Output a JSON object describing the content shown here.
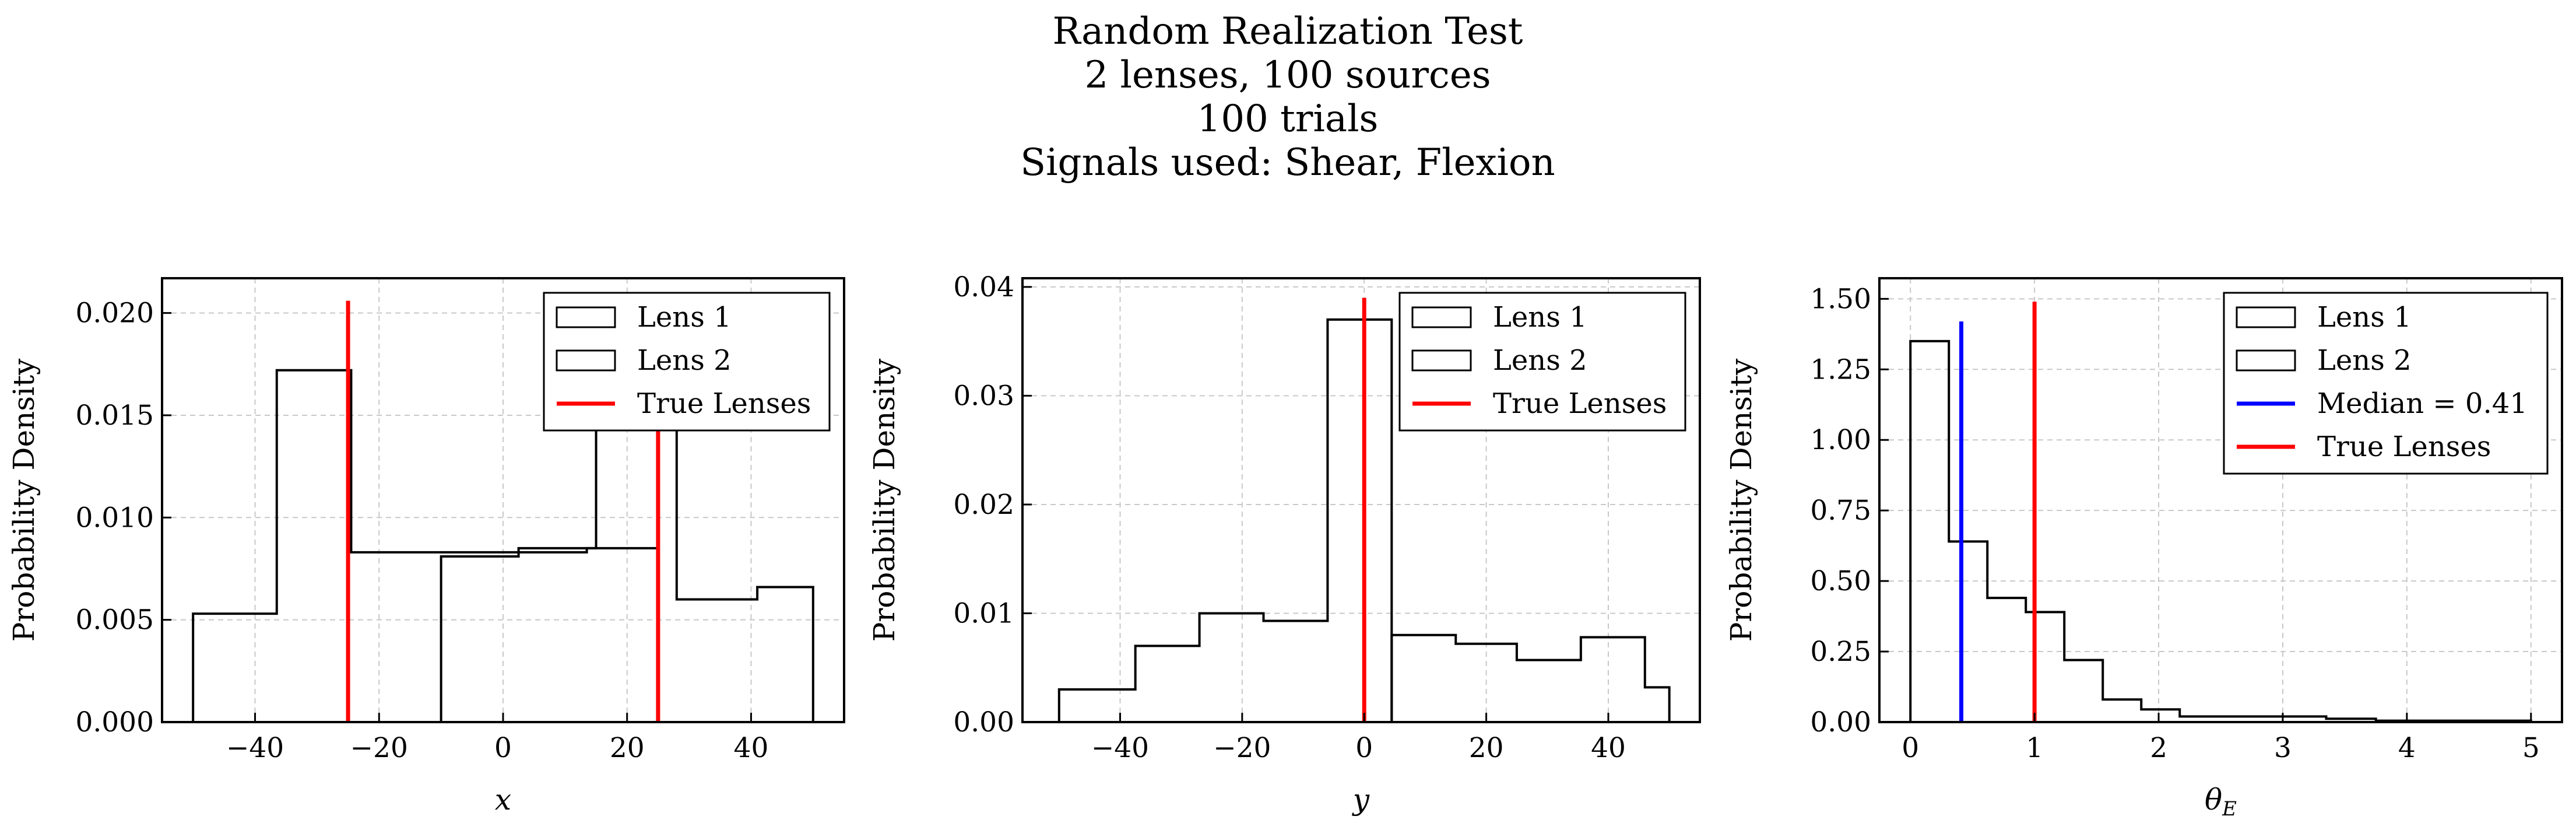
{
  "title_lines": [
    "Random Realization Test",
    "2 lenses, 100 sources",
    "100 trials",
    "Signals used: Shear, Flexion"
  ],
  "colors": {
    "hist": "#000000",
    "true_lenses": "#ff0000",
    "median": "#0000ff",
    "grid": "#c8c8c8"
  },
  "chart_data": [
    {
      "type": "histogram",
      "xlabel": "x",
      "ylabel": "Probability Density",
      "xlim": [
        -55,
        55
      ],
      "ylim": [
        0,
        0.0217
      ],
      "xticks": [
        -40,
        -20,
        0,
        20,
        40
      ],
      "xtick_labels": [
        "−40",
        "−20",
        "0",
        "20",
        "40"
      ],
      "yticks": [
        0,
        0.005,
        0.01,
        0.015,
        0.02
      ],
      "ytick_labels": [
        "0.000",
        "0.005",
        "0.010",
        "0.015",
        "0.020"
      ],
      "grid": true,
      "legend_position": "top-right",
      "series": [
        {
          "name": "Lens 1",
          "kind": "step",
          "edges": [
            -50,
            -36.5,
            -24.5,
            13.5,
            25
          ],
          "values": [
            0.0053,
            0.0172,
            0.0083,
            0.0085
          ]
        },
        {
          "name": "Lens 2",
          "kind": "step",
          "edges": [
            -10,
            2.5,
            15,
            28,
            41,
            50
          ],
          "values": [
            0.0081,
            0.0085,
            0.0151,
            0.006,
            0.0066
          ]
        }
      ],
      "vlines": [
        {
          "name": "True Lenses",
          "color": "#ff0000",
          "x": [
            -25,
            25
          ],
          "ymax": 0.0206
        }
      ],
      "legend": [
        {
          "label": "Lens 1",
          "kind": "patch"
        },
        {
          "label": "Lens 2",
          "kind": "patch"
        },
        {
          "label": "True Lenses",
          "kind": "line",
          "color": "#ff0000"
        }
      ]
    },
    {
      "type": "histogram",
      "xlabel": "y",
      "ylabel": "Probability Density",
      "xlim": [
        -56,
        55
      ],
      "ylim": [
        0,
        0.0408
      ],
      "xticks": [
        -40,
        -20,
        0,
        20,
        40
      ],
      "xtick_labels": [
        "−40",
        "−20",
        "0",
        "20",
        "40"
      ],
      "yticks": [
        0,
        0.01,
        0.02,
        0.03,
        0.04
      ],
      "ytick_labels": [
        "0.00",
        "0.01",
        "0.02",
        "0.03",
        "0.04"
      ],
      "grid": true,
      "legend_position": "top-right",
      "series": [
        {
          "name": "Lens 1",
          "kind": "step",
          "edges": [
            -50,
            -37.5,
            -27,
            -16.5,
            -6,
            4.5
          ],
          "values": [
            0.003,
            0.007,
            0.01,
            0.0093,
            0.037
          ]
        },
        {
          "name": "Lens 2",
          "kind": "step",
          "edges": [
            4.5,
            15,
            25,
            35.5,
            46,
            50
          ],
          "values": [
            0.008,
            0.0072,
            0.0057,
            0.0078,
            0.0032
          ]
        }
      ],
      "vlines": [
        {
          "name": "True Lenses",
          "color": "#ff0000",
          "x": [
            0
          ],
          "ymax": 0.039
        }
      ],
      "legend": [
        {
          "label": "Lens 1",
          "kind": "patch"
        },
        {
          "label": "Lens 2",
          "kind": "patch"
        },
        {
          "label": "True Lenses",
          "kind": "line",
          "color": "#ff0000"
        }
      ]
    },
    {
      "type": "histogram",
      "xlabel": "θ",
      "xlabel_sub": "E",
      "ylabel": "Probability Density",
      "xlim": [
        -0.25,
        5.25
      ],
      "ylim": [
        0,
        1.5731
      ],
      "xticks": [
        0,
        1,
        2,
        3,
        4,
        5
      ],
      "xtick_labels": [
        "0",
        "1",
        "2",
        "3",
        "4",
        "5"
      ],
      "yticks": [
        0,
        0.25,
        0.5,
        0.75,
        1.0,
        1.25,
        1.5
      ],
      "ytick_labels": [
        "0.00",
        "0.25",
        "0.50",
        "0.75",
        "1.00",
        "1.25",
        "1.50"
      ],
      "grid": true,
      "legend_position": "top-right",
      "series": [
        {
          "name": "Lens 1",
          "kind": "step",
          "edges": [
            0,
            0.31,
            0.62,
            0.93,
            1.24,
            1.55,
            1.86,
            2.17,
            3.35,
            3.75,
            5
          ],
          "values": [
            1.35,
            0.64,
            0.44,
            0.39,
            0.22,
            0.08,
            0.045,
            0.02,
            0.012,
            0.005
          ]
        }
      ],
      "vlines": [
        {
          "name": "Median = 0.41",
          "color": "#0000ff",
          "x": [
            0.41
          ],
          "ymax": 1.42
        },
        {
          "name": "True Lenses",
          "color": "#ff0000",
          "x": [
            1
          ],
          "ymax": 1.49
        }
      ],
      "legend": [
        {
          "label": "Lens 1",
          "kind": "patch"
        },
        {
          "label": "Lens 2",
          "kind": "patch"
        },
        {
          "label": "Median = 0.41",
          "kind": "line",
          "color": "#0000ff"
        },
        {
          "label": "True Lenses",
          "kind": "line",
          "color": "#ff0000"
        }
      ]
    }
  ]
}
